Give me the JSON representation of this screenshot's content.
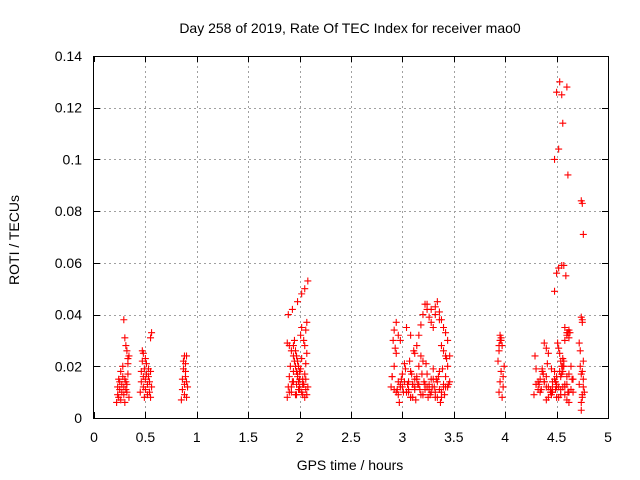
{
  "chart_data": {
    "type": "scatter",
    "title": "Day 258 of 2019, Rate Of TEC Index for receiver mao0",
    "xlabel": "GPS time / hours",
    "ylabel": "ROTI / TECUs",
    "xlim": [
      0,
      5
    ],
    "ylim": [
      0,
      0.14
    ],
    "xticks": [
      0,
      0.5,
      1,
      1.5,
      2,
      2.5,
      3,
      3.5,
      4,
      4.5,
      5
    ],
    "xtick_labels": [
      "0",
      "0.5",
      "1",
      "1.5",
      "2",
      "2.5",
      "3",
      "3.5",
      "4",
      "4.5",
      "5"
    ],
    "yticks": [
      0,
      0.02,
      0.04,
      0.06,
      0.08,
      0.1,
      0.12,
      0.14
    ],
    "ytick_labels": [
      "0",
      "0.02",
      "0.04",
      "0.06",
      "0.08",
      "0.1",
      "0.12",
      "0.14"
    ],
    "grid": true,
    "marker": "+",
    "color": "#ff0000",
    "series": [
      {
        "name": "ROTI",
        "x": [
          0.22,
          0.23,
          0.23,
          0.24,
          0.24,
          0.25,
          0.25,
          0.26,
          0.26,
          0.27,
          0.27,
          0.28,
          0.28,
          0.29,
          0.29,
          0.3,
          0.3,
          0.31,
          0.31,
          0.32,
          0.32,
          0.33,
          0.33,
          0.34,
          0.34,
          0.29,
          0.3,
          0.31,
          0.32,
          0.33,
          0.45,
          0.46,
          0.46,
          0.47,
          0.47,
          0.48,
          0.48,
          0.49,
          0.49,
          0.5,
          0.5,
          0.51,
          0.51,
          0.52,
          0.52,
          0.53,
          0.53,
          0.54,
          0.54,
          0.55,
          0.55,
          0.56,
          0.48,
          0.5,
          0.55,
          0.56,
          0.85,
          0.86,
          0.86,
          0.87,
          0.87,
          0.88,
          0.88,
          0.89,
          0.89,
          0.9,
          0.9,
          0.91,
          0.88,
          0.89,
          0.9,
          1.88,
          1.89,
          1.9,
          1.91,
          1.92,
          1.93,
          1.94,
          1.95,
          1.96,
          1.97,
          1.98,
          1.99,
          2.0,
          2.01,
          2.02,
          2.03,
          2.04,
          2.05,
          2.06,
          2.07,
          2.08,
          1.9,
          1.92,
          1.94,
          1.96,
          1.97,
          1.98,
          1.99,
          2.0,
          2.02,
          2.03,
          2.04,
          2.05,
          2.06,
          2.07,
          1.96,
          1.97,
          1.98,
          1.99,
          2.0,
          1.94,
          1.95,
          2.01,
          2.02,
          2.04,
          2.05,
          2.06,
          2.07,
          1.88,
          1.9,
          1.92,
          1.94,
          1.97,
          2.0,
          2.03,
          2.06,
          1.89,
          1.93,
          1.98,
          2.02,
          2.05,
          2.08,
          2.89,
          2.9,
          2.92,
          2.94,
          2.96,
          2.98,
          3.0,
          3.02,
          3.04,
          3.06,
          3.08,
          3.1,
          3.12,
          3.14,
          3.16,
          3.18,
          3.2,
          3.22,
          3.24,
          3.26,
          3.28,
          3.3,
          3.32,
          3.34,
          3.36,
          3.38,
          3.4,
          3.42,
          3.44,
          3.46,
          2.91,
          2.95,
          2.99,
          3.03,
          3.07,
          3.11,
          3.15,
          3.19,
          3.23,
          3.27,
          3.31,
          3.35,
          3.39,
          3.43,
          2.93,
          2.97,
          3.01,
          3.05,
          3.09,
          3.13,
          3.17,
          3.21,
          3.25,
          3.29,
          3.33,
          3.37,
          3.41,
          3.45,
          2.9,
          2.94,
          2.98,
          3.02,
          3.06,
          3.1,
          3.14,
          3.18,
          3.22,
          3.26,
          3.3,
          3.34,
          3.38,
          3.42,
          3.46,
          2.92,
          2.96,
          3.0,
          3.04,
          3.08,
          3.12,
          3.16,
          3.2,
          3.24,
          3.28,
          3.32,
          3.36,
          3.4,
          3.44,
          3.06,
          3.08,
          3.1,
          3.12,
          3.14,
          3.16,
          3.18,
          3.2,
          3.22,
          3.24,
          3.26,
          3.28,
          3.3,
          3.32,
          3.34,
          3.36,
          3.38,
          3.4,
          3.42,
          3.44,
          2.92,
          2.94,
          2.96,
          2.98,
          3.04,
          3.08,
          3.12,
          3.2,
          3.24,
          3.28,
          3.32,
          3.36,
          3.38,
          3.4,
          3.42,
          3.93,
          3.94,
          3.94,
          3.95,
          3.95,
          3.96,
          3.96,
          3.97,
          3.97,
          3.98,
          3.98,
          3.99,
          3.94,
          3.95,
          3.96,
          4.28,
          4.3,
          4.32,
          4.34,
          4.36,
          4.38,
          4.4,
          4.42,
          4.44,
          4.46,
          4.48,
          4.5,
          4.52,
          4.54,
          4.56,
          4.58,
          4.6,
          4.62,
          4.64,
          4.66,
          4.3,
          4.34,
          4.38,
          4.42,
          4.46,
          4.5,
          4.54,
          4.58,
          4.62,
          4.66,
          4.32,
          4.36,
          4.4,
          4.44,
          4.48,
          4.52,
          4.56,
          4.6,
          4.64,
          4.29,
          4.33,
          4.37,
          4.41,
          4.45,
          4.49,
          4.53,
          4.57,
          4.61,
          4.65,
          4.35,
          4.4,
          4.45,
          4.5,
          4.55,
          4.6,
          4.38,
          4.42,
          4.46,
          4.5,
          4.54,
          4.58,
          4.62,
          4.3,
          4.35,
          4.4,
          4.45,
          4.49,
          4.51,
          4.52,
          4.53,
          4.54,
          4.55,
          4.56,
          4.58,
          4.6,
          4.62,
          4.63,
          4.48,
          4.5,
          4.52,
          4.55,
          4.57,
          4.59,
          4.61,
          4.48,
          4.52,
          4.56,
          4.6,
          4.5,
          4.53,
          4.55,
          4.56,
          4.57,
          4.58,
          4.6,
          4.61,
          4.62,
          4.72,
          4.73,
          4.74,
          4.74,
          4.75,
          4.75,
          4.76,
          4.76,
          4.77,
          4.72,
          4.74,
          4.75,
          4.76,
          4.73,
          4.75,
          4.74,
          4.75,
          4.76,
          4.74,
          4.75
        ],
        "y": [
          0.006,
          0.009,
          0.012,
          0.015,
          0.008,
          0.011,
          0.014,
          0.018,
          0.007,
          0.01,
          0.013,
          0.016,
          0.02,
          0.009,
          0.012,
          0.015,
          0.006,
          0.011,
          0.014,
          0.01,
          0.013,
          0.017,
          0.021,
          0.024,
          0.008,
          0.038,
          0.031,
          0.028,
          0.026,
          0.023,
          0.01,
          0.014,
          0.018,
          0.022,
          0.026,
          0.012,
          0.016,
          0.019,
          0.008,
          0.011,
          0.015,
          0.017,
          0.021,
          0.009,
          0.013,
          0.016,
          0.019,
          0.01,
          0.014,
          0.018,
          0.008,
          0.012,
          0.025,
          0.023,
          0.031,
          0.033,
          0.007,
          0.011,
          0.015,
          0.019,
          0.022,
          0.009,
          0.013,
          0.016,
          0.021,
          0.024,
          0.008,
          0.012,
          0.024,
          0.018,
          0.014,
          0.008,
          0.012,
          0.016,
          0.02,
          0.01,
          0.014,
          0.018,
          0.022,
          0.009,
          0.013,
          0.017,
          0.011,
          0.015,
          0.019,
          0.023,
          0.009,
          0.013,
          0.017,
          0.021,
          0.025,
          0.012,
          0.028,
          0.026,
          0.024,
          0.02,
          0.018,
          0.016,
          0.014,
          0.012,
          0.01,
          0.015,
          0.013,
          0.008,
          0.011,
          0.009,
          0.026,
          0.024,
          0.022,
          0.02,
          0.018,
          0.028,
          0.03,
          0.032,
          0.035,
          0.03,
          0.028,
          0.034,
          0.037,
          0.029,
          0.01,
          0.012,
          0.014,
          0.009,
          0.011,
          0.013,
          0.015,
          0.04,
          0.042,
          0.045,
          0.048,
          0.05,
          0.053,
          0.012,
          0.016,
          0.02,
          0.025,
          0.009,
          0.013,
          0.017,
          0.021,
          0.01,
          0.014,
          0.018,
          0.008,
          0.012,
          0.016,
          0.02,
          0.024,
          0.009,
          0.013,
          0.017,
          0.011,
          0.015,
          0.019,
          0.01,
          0.014,
          0.018,
          0.008,
          0.012,
          0.016,
          0.02,
          0.024,
          0.03,
          0.011,
          0.015,
          0.019,
          0.022,
          0.026,
          0.013,
          0.017,
          0.021,
          0.009,
          0.012,
          0.016,
          0.019,
          0.023,
          0.027,
          0.006,
          0.01,
          0.013,
          0.017,
          0.007,
          0.011,
          0.014,
          0.008,
          0.012,
          0.015,
          0.006,
          0.009,
          0.013,
          0.016,
          0.01,
          0.012,
          0.014,
          0.011,
          0.013,
          0.015,
          0.009,
          0.011,
          0.013,
          0.015,
          0.008,
          0.01,
          0.012,
          0.014,
          0.011,
          0.014,
          0.012,
          0.01,
          0.008,
          0.011,
          0.013,
          0.009,
          0.012,
          0.01,
          0.008,
          0.011,
          0.013,
          0.012,
          0.01,
          0.008,
          0.013,
          0.015,
          0.028,
          0.032,
          0.036,
          0.04,
          0.044,
          0.042,
          0.039,
          0.037,
          0.035,
          0.043,
          0.045,
          0.041,
          0.038,
          0.035,
          0.033,
          0.03,
          0.034,
          0.037,
          0.032,
          0.03,
          0.035,
          0.032,
          0.025,
          0.022,
          0.044,
          0.042,
          0.04,
          0.038,
          0.028,
          0.026,
          0.024,
          0.022,
          0.026,
          0.028,
          0.03,
          0.032,
          0.031,
          0.03,
          0.028,
          0.008,
          0.012,
          0.016,
          0.02,
          0.01,
          0.014,
          0.018,
          0.009,
          0.013,
          0.011,
          0.015,
          0.019,
          0.029,
          0.027,
          0.025,
          0.01,
          0.014,
          0.018,
          0.008,
          0.012,
          0.016,
          0.02,
          0.009,
          0.013,
          0.017,
          0.011,
          0.015,
          0.019,
          0.01,
          0.014,
          0.008,
          0.012,
          0.016,
          0.009,
          0.013,
          0.006,
          0.01,
          0.014,
          0.018,
          0.007,
          0.011,
          0.015,
          0.008,
          0.012,
          0.016,
          0.02,
          0.024,
          0.013,
          0.017,
          0.021,
          0.009,
          0.014,
          0.018,
          0.022,
          0.01,
          0.015,
          0.011,
          0.016,
          0.019,
          0.012,
          0.017,
          0.007,
          0.014,
          0.012,
          0.01,
          0.013,
          0.011,
          0.012,
          0.01,
          0.013,
          0.011,
          0.012,
          0.01,
          0.011,
          0.029,
          0.027,
          0.025,
          0.022,
          0.02,
          0.018,
          0.03,
          0.032,
          0.034,
          0.033,
          0.049,
          0.056,
          0.058,
          0.059,
          0.059,
          0.055,
          0.094,
          0.1,
          0.104,
          0.114,
          0.128,
          0.126,
          0.13,
          0.125,
          0.023,
          0.02,
          0.035,
          0.033,
          0.033,
          0.031,
          0.029,
          0.026,
          0.003,
          0.006,
          0.008,
          0.018,
          0.012,
          0.015,
          0.01,
          0.013,
          0.017,
          0.009,
          0.022,
          0.02,
          0.038,
          0.039,
          0.037,
          0.071,
          0.084,
          0.083
        ]
      }
    ]
  }
}
